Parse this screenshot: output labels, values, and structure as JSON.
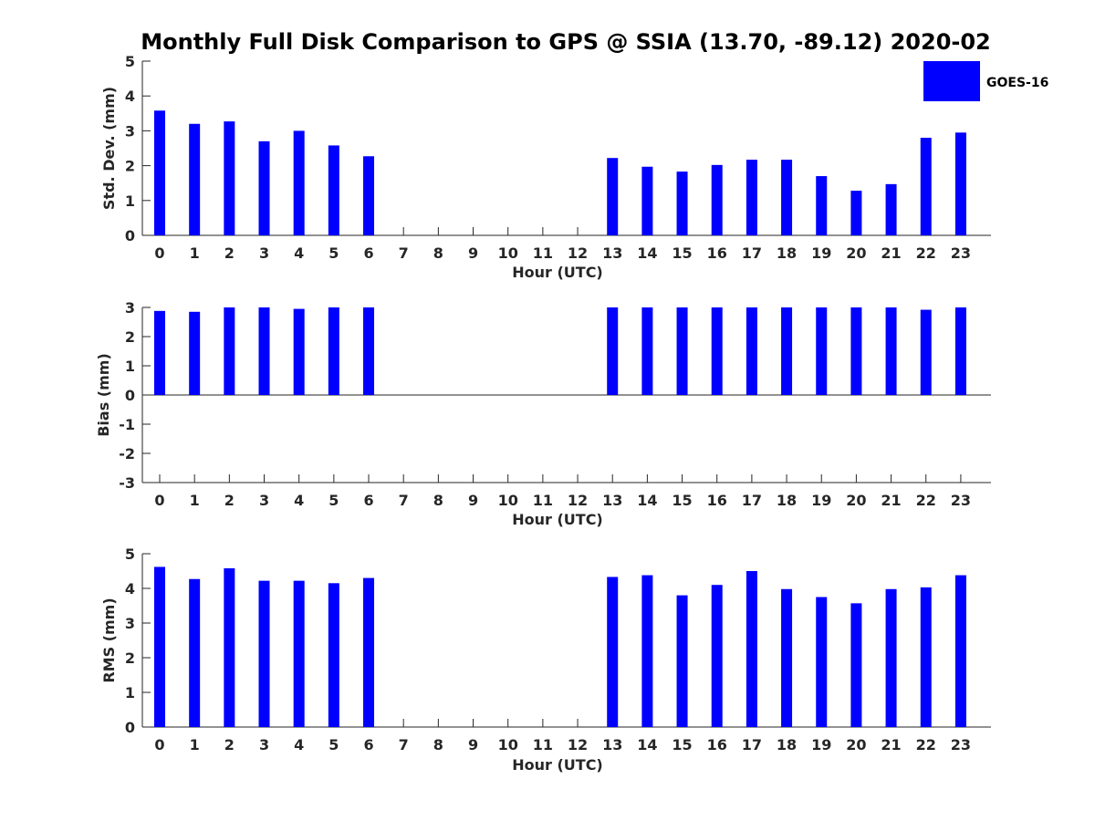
{
  "chart_data": {
    "title": "Monthly Full Disk Comparison to GPS @ SSIA (13.70, -89.12) 2020-02",
    "legend": {
      "label": "GOES-16",
      "color": "#0000ff",
      "position": "top-right"
    },
    "bar_color": "#0000ff",
    "panels": [
      {
        "type": "bar",
        "xlabel": "Hour (UTC)",
        "ylabel": "Std. Dev. (mm)",
        "ylim": [
          0,
          5
        ],
        "yticks": [
          "0",
          "1",
          "2",
          "3",
          "4",
          "5"
        ],
        "categories": [
          "0",
          "1",
          "2",
          "3",
          "4",
          "5",
          "6",
          "7",
          "8",
          "9",
          "10",
          "11",
          "12",
          "13",
          "14",
          "15",
          "16",
          "17",
          "18",
          "19",
          "20",
          "21",
          "22",
          "23"
        ],
        "values": [
          3.58,
          3.2,
          3.27,
          2.7,
          3.0,
          2.58,
          2.27,
          null,
          null,
          null,
          null,
          null,
          null,
          2.22,
          1.97,
          1.83,
          2.02,
          2.17,
          2.17,
          1.7,
          1.28,
          1.47,
          2.8,
          2.95
        ]
      },
      {
        "type": "bar",
        "xlabel": "Hour (UTC)",
        "ylabel": "Bias (mm)",
        "ylim": [
          -3,
          3
        ],
        "yticks": [
          "-3",
          "-2",
          "-1",
          "0",
          "1",
          "2",
          "3"
        ],
        "categories": [
          "0",
          "1",
          "2",
          "3",
          "4",
          "5",
          "6",
          "7",
          "8",
          "9",
          "10",
          "11",
          "12",
          "13",
          "14",
          "15",
          "16",
          "17",
          "18",
          "19",
          "20",
          "21",
          "22",
          "23"
        ],
        "values": [
          2.88,
          2.85,
          3.0,
          3.0,
          2.95,
          3.0,
          3.0,
          null,
          null,
          null,
          null,
          null,
          null,
          3.0,
          3.0,
          3.0,
          3.0,
          3.0,
          3.0,
          3.0,
          3.0,
          3.0,
          2.92,
          3.0
        ]
      },
      {
        "type": "bar",
        "xlabel": "Hour (UTC)",
        "ylabel": "RMS (mm)",
        "ylim": [
          0,
          5
        ],
        "yticks": [
          "0",
          "1",
          "2",
          "3",
          "4",
          "5"
        ],
        "categories": [
          "0",
          "1",
          "2",
          "3",
          "4",
          "5",
          "6",
          "7",
          "8",
          "9",
          "10",
          "11",
          "12",
          "13",
          "14",
          "15",
          "16",
          "17",
          "18",
          "19",
          "20",
          "21",
          "22",
          "23"
        ],
        "values": [
          4.62,
          4.27,
          4.58,
          4.22,
          4.22,
          4.15,
          4.3,
          null,
          null,
          null,
          null,
          null,
          null,
          4.33,
          4.38,
          3.8,
          4.1,
          4.5,
          3.98,
          3.75,
          3.57,
          3.98,
          4.03,
          4.38
        ]
      }
    ]
  }
}
